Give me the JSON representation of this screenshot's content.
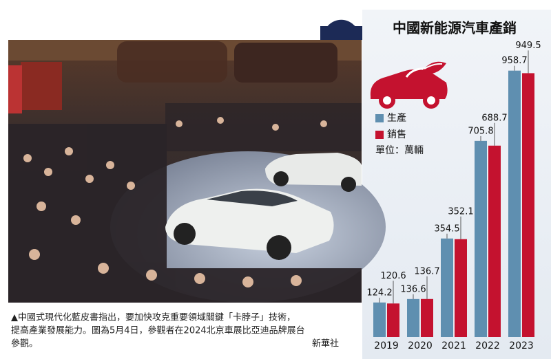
{
  "chart_data": {
    "type": "bar",
    "title": "中國新能源汽車產銷",
    "categories": [
      "2019",
      "2020",
      "2021",
      "2022",
      "2023"
    ],
    "series": [
      {
        "name": "生產",
        "color": "#5f8fb0",
        "values": [
          124.2,
          136.6,
          354.5,
          705.8,
          958.7
        ]
      },
      {
        "name": "銷售",
        "color": "#c4122f",
        "values": [
          120.6,
          136.7,
          352.1,
          688.7,
          949.5
        ]
      }
    ],
    "unit_label": "單位：萬輛"
  },
  "caption": {
    "lines": [
      "▲中國式現代化藍皮書指出，要加快攻克重要領域關鍵「卡脖子」技術，",
      "提高產業發展能力。圖為5月4日，參觀者在2024北京車展比亞迪品牌展台",
      "參觀。"
    ],
    "credit": "新華社"
  }
}
